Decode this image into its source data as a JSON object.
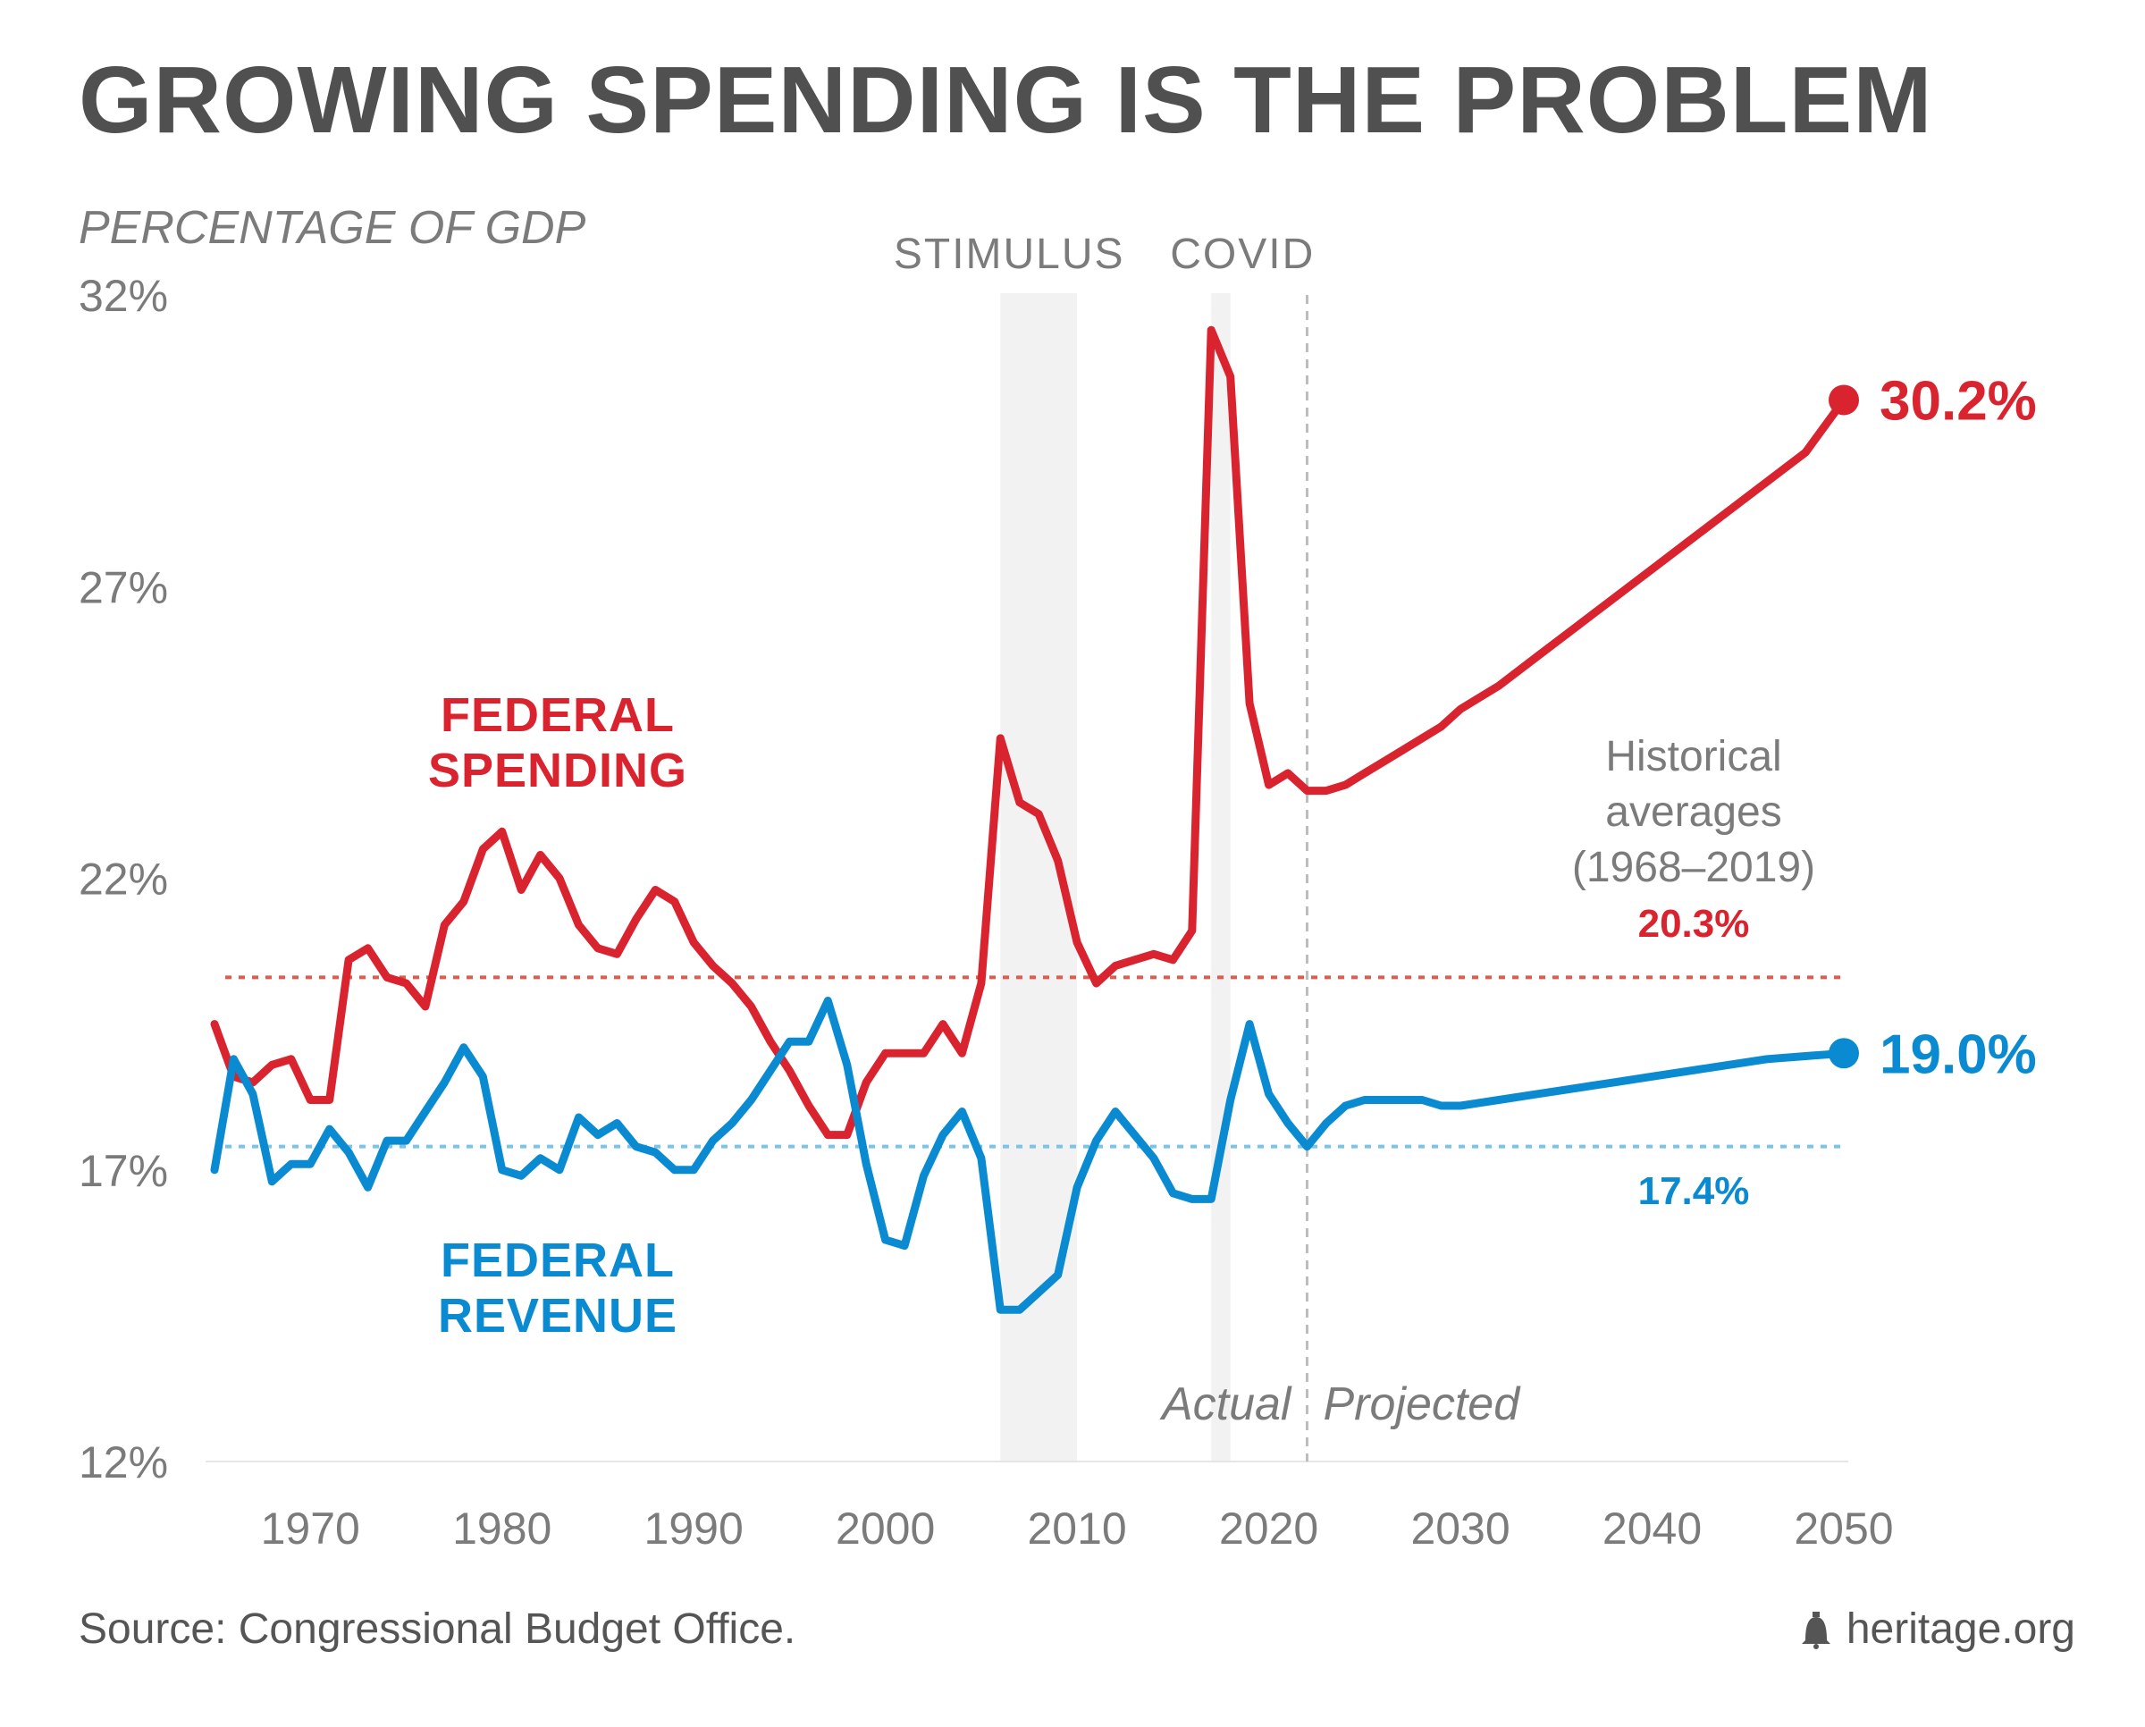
{
  "title": "GROWING SPENDING IS THE PROBLEM",
  "source": "Source: Congressional Budget Office.",
  "brand": {
    "text": "heritage.org",
    "icon": "liberty-bell-icon"
  },
  "colors": {
    "spending": "#d9232e",
    "revenue": "#0a8bd1",
    "spending_avg": "#e05a4e",
    "revenue_avg": "#7cc3ea",
    "text_gray": "#7b7b7b",
    "shade": "#f2f2f2"
  },
  "chart_data": {
    "type": "line",
    "ylabel": "PERCENTAGE OF GDP",
    "ylim": [
      12,
      32
    ],
    "yticks": [
      "12%",
      "17%",
      "22%",
      "27%",
      "32%"
    ],
    "yticks_values": [
      12,
      17,
      22,
      27,
      32
    ],
    "xlim": [
      1965,
      2050
    ],
    "xticks": [
      1970,
      1980,
      1990,
      2000,
      2010,
      2020,
      2030,
      2040,
      2050
    ],
    "shaded_periods": [
      {
        "label": "STIMULUS",
        "range": [
          2006,
          2010
        ]
      },
      {
        "label": "COVID",
        "range": [
          2017,
          2018
        ]
      }
    ],
    "divider": {
      "x": 2022,
      "left_label": "Actual",
      "right_label": "Projected"
    },
    "averages": {
      "heading": "Historical averages (1968–2019)",
      "heading_lines": [
        "Historical",
        "averages",
        "(1968–2019)"
      ],
      "spending": {
        "value": 20.3,
        "label": "20.3%"
      },
      "revenue": {
        "value": 17.4,
        "label": "17.4%"
      }
    },
    "series": [
      {
        "name": "FEDERAL SPENDING",
        "name_lines": [
          "FEDERAL",
          "SPENDING"
        ],
        "end_label": "30.2%",
        "points": [
          [
            1965,
            19.5
          ],
          [
            1966,
            18.6
          ],
          [
            1967,
            18.5
          ],
          [
            1968,
            18.8
          ],
          [
            1969,
            18.9
          ],
          [
            1970,
            18.2
          ],
          [
            1971,
            18.2
          ],
          [
            1972,
            20.6
          ],
          [
            1973,
            20.8
          ],
          [
            1974,
            20.3
          ],
          [
            1975,
            20.2
          ],
          [
            1976,
            19.8
          ],
          [
            1977,
            21.2
          ],
          [
            1978,
            21.6
          ],
          [
            1979,
            22.5
          ],
          [
            1980,
            22.8
          ],
          [
            1981,
            21.8
          ],
          [
            1982,
            22.4
          ],
          [
            1983,
            22.0
          ],
          [
            1984,
            21.2
          ],
          [
            1985,
            20.8
          ],
          [
            1986,
            20.7
          ],
          [
            1987,
            21.3
          ],
          [
            1988,
            21.8
          ],
          [
            1989,
            21.6
          ],
          [
            1990,
            20.9
          ],
          [
            1991,
            20.5
          ],
          [
            1992,
            20.2
          ],
          [
            1993,
            19.8
          ],
          [
            1994,
            19.2
          ],
          [
            1995,
            18.7
          ],
          [
            1996,
            18.1
          ],
          [
            1997,
            17.6
          ],
          [
            1998,
            17.6
          ],
          [
            1999,
            18.5
          ],
          [
            2000,
            19.0
          ],
          [
            2001,
            19.0
          ],
          [
            2002,
            19.0
          ],
          [
            2003,
            19.5
          ],
          [
            2004,
            19.0
          ],
          [
            2005,
            20.2
          ],
          [
            2006,
            24.4
          ],
          [
            2007,
            23.3
          ],
          [
            2008,
            23.1
          ],
          [
            2009,
            22.3
          ],
          [
            2010,
            20.9
          ],
          [
            2011,
            20.2
          ],
          [
            2012,
            20.5
          ],
          [
            2013,
            20.6
          ],
          [
            2014,
            20.7
          ],
          [
            2015,
            20.6
          ],
          [
            2016,
            21.1
          ],
          [
            2017,
            31.4
          ],
          [
            2018,
            30.6
          ],
          [
            2019,
            25.0
          ],
          [
            2020,
            23.6
          ],
          [
            2021,
            23.8
          ],
          [
            2022,
            23.5
          ],
          [
            2023,
            23.5
          ],
          [
            2024,
            23.6
          ],
          [
            2025,
            23.8
          ],
          [
            2026,
            24.0
          ],
          [
            2027,
            24.2
          ],
          [
            2028,
            24.4
          ],
          [
            2029,
            24.6
          ],
          [
            2030,
            24.9
          ],
          [
            2032,
            25.3
          ],
          [
            2034,
            25.8
          ],
          [
            2036,
            26.3
          ],
          [
            2038,
            26.8
          ],
          [
            2040,
            27.3
          ],
          [
            2042,
            27.8
          ],
          [
            2044,
            28.3
          ],
          [
            2046,
            28.8
          ],
          [
            2048,
            29.3
          ],
          [
            2050,
            30.2
          ]
        ]
      },
      {
        "name": "FEDERAL REVENUE",
        "name_lines": [
          "FEDERAL",
          "REVENUE"
        ],
        "end_label": "19.0%",
        "points": [
          [
            1965,
            17.0
          ],
          [
            1966,
            18.9
          ],
          [
            1967,
            18.3
          ],
          [
            1968,
            16.8
          ],
          [
            1969,
            17.1
          ],
          [
            1970,
            17.1
          ],
          [
            1971,
            17.7
          ],
          [
            1972,
            17.3
          ],
          [
            1973,
            16.7
          ],
          [
            1974,
            17.5
          ],
          [
            1975,
            17.5
          ],
          [
            1976,
            18.0
          ],
          [
            1977,
            18.5
          ],
          [
            1978,
            19.1
          ],
          [
            1979,
            18.6
          ],
          [
            1980,
            17.0
          ],
          [
            1981,
            16.9
          ],
          [
            1982,
            17.2
          ],
          [
            1983,
            17.0
          ],
          [
            1984,
            17.9
          ],
          [
            1985,
            17.6
          ],
          [
            1986,
            17.8
          ],
          [
            1987,
            17.4
          ],
          [
            1988,
            17.3
          ],
          [
            1989,
            17.0
          ],
          [
            1990,
            17.0
          ],
          [
            1991,
            17.5
          ],
          [
            1992,
            17.8
          ],
          [
            1993,
            18.2
          ],
          [
            1994,
            18.7
          ],
          [
            1995,
            19.2
          ],
          [
            1996,
            19.2
          ],
          [
            1997,
            19.9
          ],
          [
            1998,
            18.8
          ],
          [
            1999,
            17.1
          ],
          [
            2000,
            15.8
          ],
          [
            2001,
            15.7
          ],
          [
            2002,
            16.9
          ],
          [
            2003,
            17.6
          ],
          [
            2004,
            18.0
          ],
          [
            2005,
            17.2
          ],
          [
            2006,
            14.6
          ],
          [
            2007,
            14.6
          ],
          [
            2008,
            14.9
          ],
          [
            2009,
            15.2
          ],
          [
            2010,
            16.7
          ],
          [
            2011,
            17.5
          ],
          [
            2012,
            18.0
          ],
          [
            2013,
            17.6
          ],
          [
            2014,
            17.2
          ],
          [
            2015,
            16.6
          ],
          [
            2016,
            16.5
          ],
          [
            2017,
            16.5
          ],
          [
            2018,
            18.2
          ],
          [
            2019,
            19.5
          ],
          [
            2020,
            18.3
          ],
          [
            2021,
            17.8
          ],
          [
            2022,
            17.4
          ],
          [
            2023,
            17.8
          ],
          [
            2024,
            18.1
          ],
          [
            2025,
            18.2
          ],
          [
            2026,
            18.2
          ],
          [
            2027,
            18.2
          ],
          [
            2028,
            18.2
          ],
          [
            2029,
            18.1
          ],
          [
            2030,
            18.1
          ],
          [
            2032,
            18.2
          ],
          [
            2034,
            18.3
          ],
          [
            2036,
            18.4
          ],
          [
            2038,
            18.5
          ],
          [
            2040,
            18.6
          ],
          [
            2042,
            18.7
          ],
          [
            2044,
            18.8
          ],
          [
            2046,
            18.9
          ],
          [
            2048,
            18.95
          ],
          [
            2050,
            19.0
          ]
        ]
      }
    ]
  }
}
